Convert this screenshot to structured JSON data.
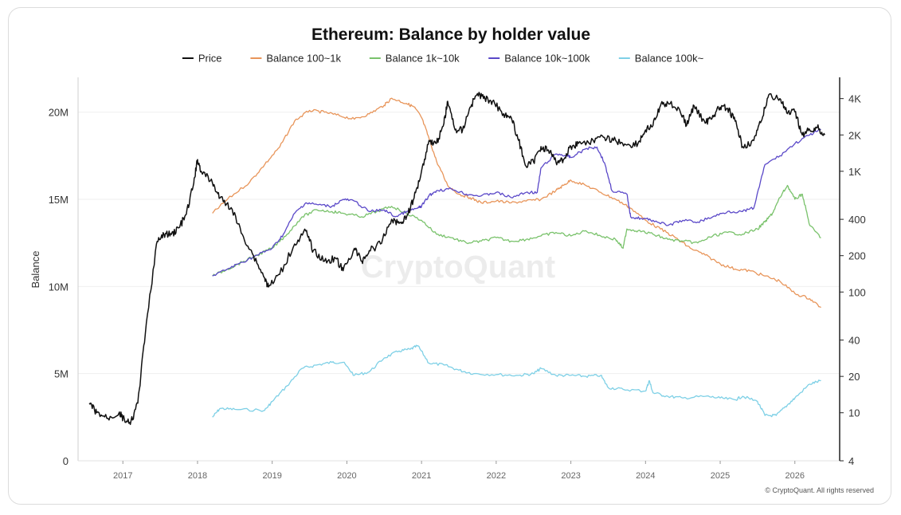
{
  "chart_data": {
    "type": "line",
    "title": "Ethereum: Balance by holder value",
    "ylabel": "Balance",
    "ylabel_right": "",
    "left_axis": {
      "min": 0,
      "max": 22000000,
      "ticks": [
        0,
        5000000,
        10000000,
        15000000,
        20000000
      ],
      "tick_labels": [
        "0",
        "5M",
        "10M",
        "15M",
        "20M"
      ]
    },
    "right_axis": {
      "scale": "log",
      "min": 4,
      "max": 6000,
      "ticks": [
        4,
        10,
        20,
        40,
        100,
        200,
        400,
        1000,
        2000,
        4000
      ],
      "tick_labels": [
        "4",
        "10",
        "20",
        "40",
        "100",
        "200",
        "400",
        "1K",
        "2K",
        "4K"
      ]
    },
    "x_axis": {
      "min": 2016.4,
      "max": 2026.6,
      "ticks": [
        2017,
        2018,
        2019,
        2020,
        2021,
        2022,
        2023,
        2024,
        2025,
        2026
      ],
      "tick_labels": [
        "2017",
        "2018",
        "2019",
        "2020",
        "2021",
        "2022",
        "2023",
        "2024",
        "2025",
        "2026"
      ]
    },
    "legend_position": "top-center",
    "grid": "horizontal",
    "watermark": "CryptoQuant",
    "copyright": "© CryptoQuant. All rights reserved",
    "series": [
      {
        "name": "Price",
        "axis": "right",
        "color": "#111111",
        "x": [
          2016.55,
          2016.65,
          2016.8,
          2016.95,
          2017.0,
          2017.1,
          2017.2,
          2017.3,
          2017.45,
          2017.55,
          2017.65,
          2017.75,
          2017.85,
          2017.95,
          2018.0,
          2018.05,
          2018.2,
          2018.3,
          2018.45,
          2018.6,
          2018.75,
          2018.9,
          2018.95,
          2019.1,
          2019.3,
          2019.45,
          2019.55,
          2019.7,
          2019.85,
          2019.95,
          2020.1,
          2020.2,
          2020.3,
          2020.45,
          2020.6,
          2020.7,
          2020.8,
          2020.9,
          2021.0,
          2021.1,
          2021.2,
          2021.3,
          2021.35,
          2021.45,
          2021.55,
          2021.65,
          2021.75,
          2021.85,
          2021.95,
          2022.1,
          2022.2,
          2022.3,
          2022.4,
          2022.5,
          2022.6,
          2022.7,
          2022.8,
          2022.9,
          2023.0,
          2023.1,
          2023.3,
          2023.45,
          2023.6,
          2023.75,
          2023.9,
          2024.0,
          2024.1,
          2024.2,
          2024.3,
          2024.45,
          2024.55,
          2024.65,
          2024.8,
          2024.9,
          2025.0,
          2025.1,
          2025.2,
          2025.3,
          2025.45,
          2025.55,
          2025.65,
          2025.8,
          2025.9,
          2026.0,
          2026.1,
          2026.2,
          2026.3,
          2026.4
        ],
        "values": [
          12,
          10,
          9,
          10,
          9,
          8,
          12,
          45,
          250,
          300,
          300,
          340,
          440,
          800,
          1250,
          1000,
          800,
          600,
          500,
          300,
          200,
          130,
          110,
          140,
          250,
          320,
          220,
          180,
          190,
          150,
          230,
          180,
          220,
          250,
          400,
          370,
          420,
          600,
          1000,
          1800,
          1700,
          2500,
          3800,
          2200,
          2200,
          3400,
          4400,
          4000,
          3800,
          3000,
          2800,
          1800,
          1100,
          1200,
          1600,
          1500,
          1200,
          1250,
          1600,
          1700,
          1800,
          1900,
          1800,
          1650,
          1700,
          2200,
          2400,
          3500,
          3700,
          3300,
          2400,
          3500,
          2500,
          2900,
          3400,
          3300,
          2600,
          1600,
          1800,
          2600,
          4300,
          4000,
          3000,
          3100,
          2000,
          2200,
          2300,
          2000
        ]
      },
      {
        "name": "Balance 100~1k",
        "axis": "left",
        "color": "#e8955a",
        "x": [
          2018.2,
          2018.4,
          2018.7,
          2018.9,
          2019.1,
          2019.3,
          2019.5,
          2019.7,
          2019.9,
          2020.1,
          2020.3,
          2020.5,
          2020.6,
          2020.8,
          2020.9,
          2021.0,
          2021.1,
          2021.2,
          2021.35,
          2021.5,
          2021.65,
          2021.8,
          2022.0,
          2022.2,
          2022.4,
          2022.6,
          2022.8,
          2022.9,
          2023.0,
          2023.2,
          2023.4,
          2023.6,
          2023.8,
          2024.0,
          2024.2,
          2024.4,
          2024.6,
          2024.8,
          2025.0,
          2025.2,
          2025.4,
          2025.6,
          2025.8,
          2026.0,
          2026.2,
          2026.35
        ],
        "values": [
          14200000,
          15000000,
          16000000,
          17000000,
          18000000,
          19500000,
          20100000,
          20000000,
          19800000,
          19600000,
          19900000,
          20400000,
          20800000,
          20500000,
          20300000,
          19700000,
          18500000,
          17200000,
          15800000,
          15300000,
          15100000,
          14800000,
          14900000,
          14800000,
          14900000,
          15000000,
          15500000,
          15800000,
          16100000,
          15800000,
          15400000,
          15000000,
          14500000,
          13800000,
          13300000,
          12800000,
          12200000,
          11800000,
          11300000,
          11000000,
          10900000,
          10600000,
          10300000,
          9600000,
          9300000,
          8800000
        ]
      },
      {
        "name": "Balance 1k~10k",
        "axis": "left",
        "color": "#79c26b",
        "x": [
          2018.2,
          2018.4,
          2018.6,
          2018.8,
          2019.0,
          2019.2,
          2019.4,
          2019.6,
          2019.8,
          2019.95,
          2020.2,
          2020.4,
          2020.6,
          2020.8,
          2021.0,
          2021.2,
          2021.4,
          2021.6,
          2021.8,
          2022.0,
          2022.2,
          2022.4,
          2022.6,
          2022.8,
          2023.0,
          2023.2,
          2023.4,
          2023.6,
          2023.7,
          2023.75,
          2023.9,
          2024.1,
          2024.3,
          2024.5,
          2024.7,
          2024.9,
          2025.1,
          2025.3,
          2025.5,
          2025.6,
          2025.7,
          2025.8,
          2025.9,
          2026.0,
          2026.1,
          2026.2,
          2026.35
        ],
        "values": [
          10600000,
          11000000,
          11400000,
          11800000,
          12200000,
          13000000,
          14000000,
          14400000,
          14300000,
          14200000,
          14000000,
          14300000,
          14600000,
          14200000,
          13800000,
          13000000,
          12800000,
          12500000,
          12600000,
          12800000,
          12600000,
          12700000,
          12900000,
          13100000,
          12900000,
          13200000,
          12900000,
          12700000,
          12200000,
          13300000,
          13200000,
          13000000,
          12700000,
          12600000,
          12500000,
          12900000,
          13100000,
          13000000,
          13300000,
          13700000,
          14200000,
          15100000,
          15800000,
          15000000,
          15300000,
          13500000,
          12800000
        ]
      },
      {
        "name": "Balance 10k~100k",
        "axis": "left",
        "color": "#5a48c8",
        "x": [
          2018.2,
          2018.4,
          2018.6,
          2018.8,
          2019.0,
          2019.15,
          2019.3,
          2019.45,
          2019.6,
          2019.8,
          2019.95,
          2020.1,
          2020.3,
          2020.5,
          2020.65,
          2020.8,
          2020.95,
          2021.0,
          2021.1,
          2021.2,
          2021.4,
          2021.6,
          2021.8,
          2022.0,
          2022.2,
          2022.4,
          2022.55,
          2022.6,
          2022.8,
          2022.95,
          2023.0,
          2023.2,
          2023.35,
          2023.45,
          2023.55,
          2023.75,
          2023.8,
          2023.95,
          2024.1,
          2024.3,
          2024.5,
          2024.7,
          2024.9,
          2025.1,
          2025.3,
          2025.45,
          2025.6,
          2025.8,
          2026.0,
          2026.2,
          2026.35
        ],
        "values": [
          10600000,
          11000000,
          11400000,
          11800000,
          12200000,
          13000000,
          14200000,
          14800000,
          14700000,
          14600000,
          15000000,
          14900000,
          14300000,
          14400000,
          14000000,
          14300000,
          14500000,
          14600000,
          15200000,
          15500000,
          15600000,
          15300000,
          15200000,
          15400000,
          15100000,
          15400000,
          15400000,
          16800000,
          17600000,
          17500000,
          17400000,
          17900000,
          18000000,
          17100000,
          15500000,
          15300000,
          14000000,
          13900000,
          13800000,
          13500000,
          13800000,
          13700000,
          14000000,
          14300000,
          14300000,
          14500000,
          17000000,
          17500000,
          18200000,
          18700000,
          19000000
        ]
      },
      {
        "name": "Balance 100k~",
        "axis": "left",
        "color": "#7ed0e6",
        "x": [
          2018.2,
          2018.3,
          2018.5,
          2018.9,
          2019.0,
          2019.2,
          2019.4,
          2019.6,
          2019.8,
          2019.95,
          2020.1,
          2020.3,
          2020.5,
          2020.7,
          2020.85,
          2020.95,
          2021.1,
          2021.3,
          2021.5,
          2021.7,
          2022.0,
          2022.3,
          2022.5,
          2022.6,
          2022.8,
          2023.0,
          2023.2,
          2023.4,
          2023.5,
          2023.7,
          2024.0,
          2024.05,
          2024.1,
          2024.3,
          2024.5,
          2024.8,
          2025.0,
          2025.2,
          2025.3,
          2025.5,
          2025.6,
          2025.75,
          2025.9,
          2026.0,
          2026.2,
          2026.35
        ],
        "values": [
          2500000,
          3000000,
          2950000,
          2900000,
          3400000,
          4300000,
          5300000,
          5500000,
          5650000,
          5650000,
          4900000,
          5100000,
          5900000,
          6300000,
          6400000,
          6600000,
          5600000,
          5500000,
          5200000,
          5000000,
          4950000,
          4900000,
          5000000,
          5300000,
          4900000,
          4900000,
          4850000,
          4900000,
          4200000,
          4100000,
          4000000,
          4600000,
          3900000,
          3700000,
          3600000,
          3700000,
          3600000,
          3500000,
          3700000,
          3400000,
          2600000,
          2600000,
          3200000,
          3600000,
          4400000,
          4600000
        ]
      }
    ]
  }
}
